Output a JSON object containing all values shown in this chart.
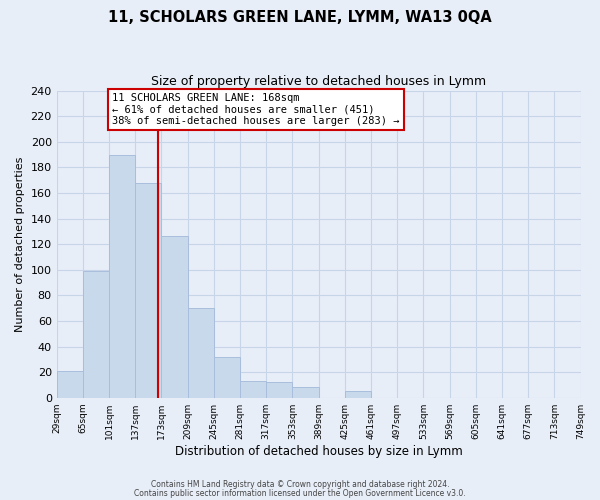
{
  "title": "11, SCHOLARS GREEN LANE, LYMM, WA13 0QA",
  "subtitle": "Size of property relative to detached houses in Lymm",
  "xlabel": "Distribution of detached houses by size in Lymm",
  "ylabel": "Number of detached properties",
  "bar_left_edges": [
    29,
    65,
    101,
    137,
    173,
    209,
    245,
    281,
    317,
    353,
    389,
    425,
    461,
    497,
    533,
    569,
    605,
    641,
    677,
    713
  ],
  "bar_heights": [
    21,
    99,
    190,
    168,
    126,
    70,
    32,
    13,
    12,
    8,
    0,
    5,
    0,
    0,
    0,
    0,
    0,
    0,
    0,
    0
  ],
  "bin_width": 36,
  "bar_color": "#c9d9ec",
  "bar_edgecolor": "#a8bedc",
  "vline_x": 168,
  "vline_color": "#cc0000",
  "annotation_line1": "11 SCHOLARS GREEN LANE: 168sqm",
  "annotation_line2": "← 61% of detached houses are smaller (451)",
  "annotation_line3": "38% of semi-detached houses are larger (283) →",
  "annotation_box_edgecolor": "#cc0000",
  "annotation_box_facecolor": "#ffffff",
  "ylim": [
    0,
    240
  ],
  "xtick_labels": [
    "29sqm",
    "65sqm",
    "101sqm",
    "137sqm",
    "173sqm",
    "209sqm",
    "245sqm",
    "281sqm",
    "317sqm",
    "353sqm",
    "389sqm",
    "425sqm",
    "461sqm",
    "497sqm",
    "533sqm",
    "569sqm",
    "605sqm",
    "641sqm",
    "677sqm",
    "713sqm",
    "749sqm"
  ],
  "ytick_labels": [
    0,
    20,
    40,
    60,
    80,
    100,
    120,
    140,
    160,
    180,
    200,
    220,
    240
  ],
  "grid_color": "#c8d4e8",
  "bg_color": "#e8eef8",
  "plot_bg_color": "#e8eef8",
  "footer1": "Contains HM Land Registry data © Crown copyright and database right 2024.",
  "footer2": "Contains public sector information licensed under the Open Government Licence v3.0."
}
